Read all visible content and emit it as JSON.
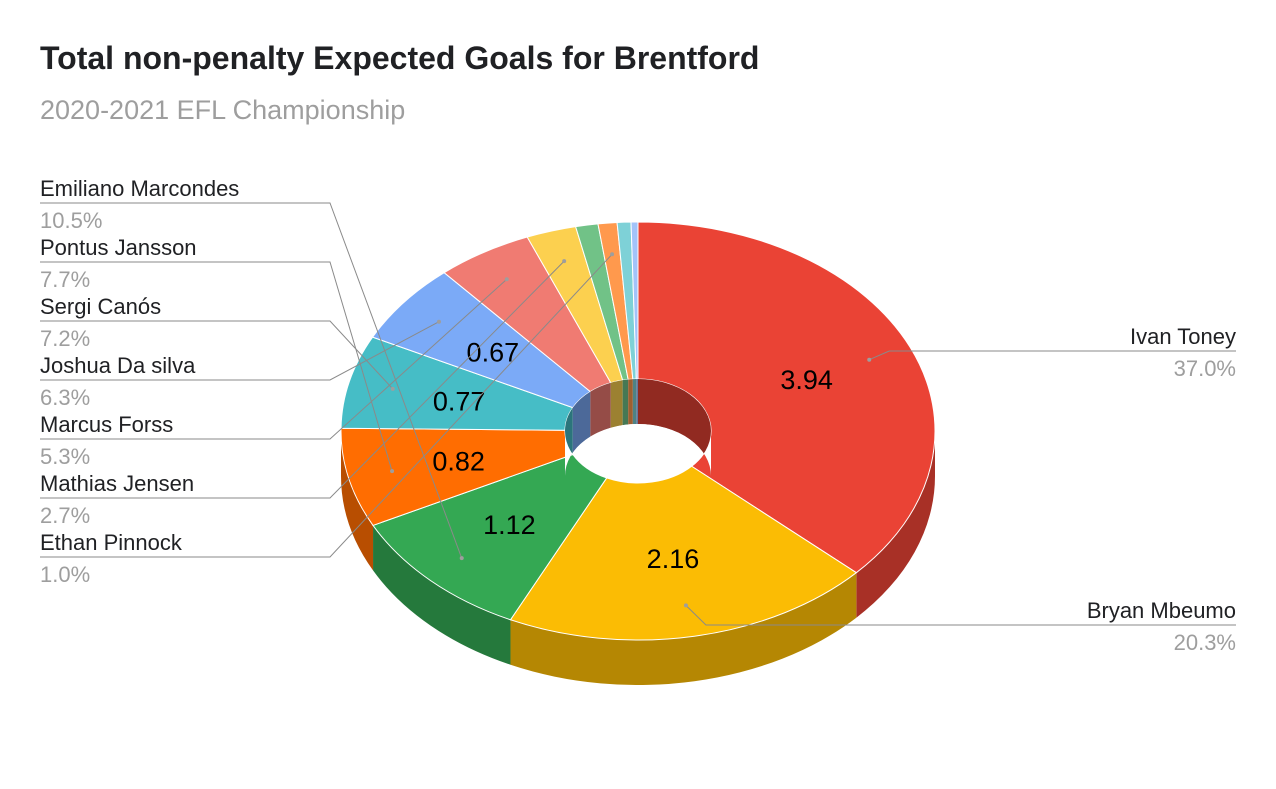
{
  "chart_data": {
    "type": "pie",
    "style": "3d-donut",
    "title": "Total non-penalty Expected Goals for Brentford",
    "subtitle": "2020-2021 EFL Championship",
    "slices": [
      {
        "name": "Ivan Toney",
        "value": 3.94,
        "percent": "37.0%",
        "color": "#ea4335",
        "value_label": "3.94",
        "label_side": "right"
      },
      {
        "name": "Bryan Mbeumo",
        "value": 2.16,
        "percent": "20.3%",
        "color": "#fbbc04",
        "value_label": "2.16",
        "label_side": "right"
      },
      {
        "name": "Emiliano Marcondes",
        "value": 1.12,
        "percent": "10.5%",
        "color": "#34a853",
        "value_label": "1.12",
        "label_side": "left"
      },
      {
        "name": "Pontus Jansson",
        "value": 0.82,
        "percent": "7.7%",
        "color": "#ff6d01",
        "value_label": "0.82",
        "label_side": "left"
      },
      {
        "name": "Sergi Canós",
        "value": 0.77,
        "percent": "7.2%",
        "color": "#46bdc6",
        "value_label": "0.77",
        "label_side": "left"
      },
      {
        "name": "Joshua Da silva",
        "value": 0.67,
        "percent": "6.3%",
        "color": "#7baaf7",
        "value_label": "0.67",
        "label_side": "left"
      },
      {
        "name": "Marcus Forss",
        "value": 0.56,
        "percent": "5.3%",
        "color": "#f07b72",
        "value_label": "",
        "label_side": "left"
      },
      {
        "name": "Mathias Jensen",
        "value": 0.29,
        "percent": "2.7%",
        "color": "#fcd04f",
        "value_label": "",
        "label_side": "left"
      },
      {
        "name": "",
        "value": 0.13,
        "percent": "",
        "color": "#71c287",
        "value_label": "",
        "label_side": "none"
      },
      {
        "name": "Ethan Pinnock",
        "value": 0.11,
        "percent": "1.0%",
        "color": "#ff994d",
        "value_label": "",
        "label_side": "left"
      },
      {
        "name": "",
        "value": 0.08,
        "percent": "",
        "color": "#7ed1d7",
        "value_label": "",
        "label_side": "none"
      },
      {
        "name": "",
        "value": 0.04,
        "percent": "",
        "color": "#a3c3f9",
        "value_label": "",
        "label_side": "none"
      }
    ]
  }
}
